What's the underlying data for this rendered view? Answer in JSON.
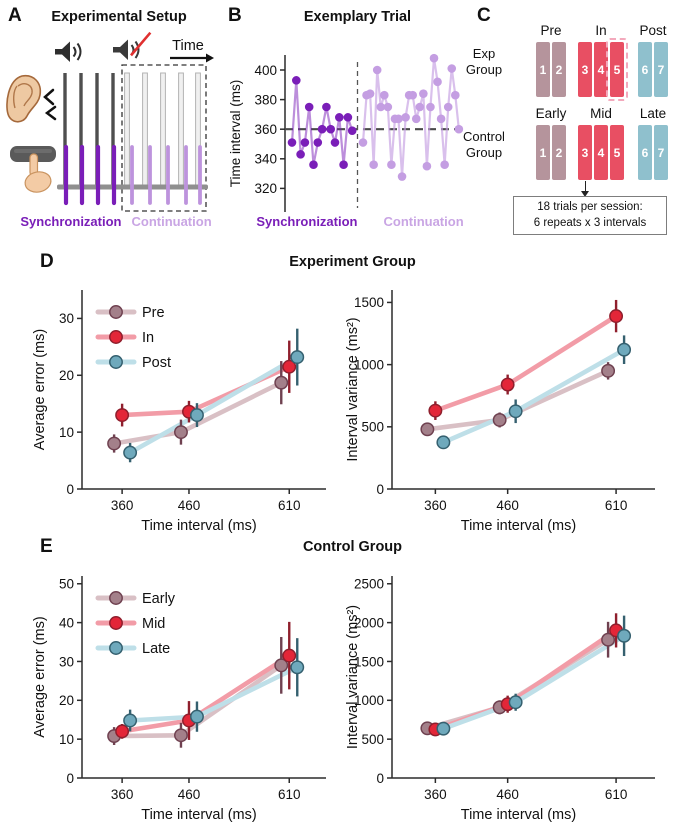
{
  "figure": {
    "panels": {
      "A": {
        "label": "A",
        "title": "Experimental Setup",
        "time_label": "Time",
        "sync_label": "Synchronization",
        "cont_label": "Continuation"
      },
      "B": {
        "label": "B",
        "title": "Exemplary Trial",
        "sync_label": "Synchronization",
        "cont_label": "Continuation"
      },
      "C": {
        "label": "C"
      },
      "D": {
        "label": "D",
        "title": "Experiment Group"
      },
      "E": {
        "label": "E",
        "title": "Control Group"
      }
    }
  },
  "colors": {
    "sync": "#7a1eb8",
    "cont": "#c49ee2",
    "axis": "#2b2b2b",
    "refline": "#4a4a4a",
    "series": {
      "pre": {
        "line": "#d9c0c5",
        "marker": "#a3808a",
        "dark": "#6f4150"
      },
      "in": {
        "line": "#f29ca7",
        "marker": "#e32638",
        "dark": "#8f1f2d"
      },
      "post": {
        "line": "#bedfe8",
        "marker": "#6fa9bc",
        "dark": "#35606f"
      }
    },
    "bars": {
      "mauve": "#b5949c",
      "red": "#e84f63",
      "blue": "#8fc0cd",
      "dashed_outline": "#f3a9bc"
    },
    "panelA": {
      "gray_line": "#4f4f4f",
      "faded_fill": "#f0f0f0",
      "faded_stroke": "#b3b3b3",
      "baseline": "#8f8f8f",
      "pad": "#5a5a5a",
      "skin": "#f3cba5",
      "skin_stroke": "#c9935f",
      "mute_slash": "#e03030",
      "dark_purple": "#7a1eb8",
      "light_purple": "#bd93dd"
    }
  },
  "panelC": {
    "rows": [
      {
        "group_label": "Exp\nGroup",
        "phases": [
          {
            "name": "Pre",
            "color": "mauve",
            "bars": [
              "1",
              "2"
            ]
          },
          {
            "name": "In",
            "color": "red",
            "bars": [
              "3",
              "4",
              "5"
            ],
            "dashed_last": true
          },
          {
            "name": "Post",
            "color": "blue",
            "bars": [
              "6",
              "7"
            ]
          }
        ]
      },
      {
        "group_label": "Control\nGroup",
        "phases": [
          {
            "name": "Early",
            "color": "mauve",
            "bars": [
              "1",
              "2"
            ]
          },
          {
            "name": "Mid",
            "color": "red",
            "bars": [
              "3",
              "4",
              "5"
            ]
          },
          {
            "name": "Late",
            "color": "blue",
            "bars": [
              "6",
              "7"
            ]
          }
        ]
      }
    ],
    "note_lines": [
      "18 trials per session:",
      "6 repeats x 3 intervals"
    ]
  },
  "chart_data": [
    {
      "id": "B",
      "type": "line",
      "panel": "B",
      "title": "Exemplary Trial",
      "ylabel": "Time interval (ms)",
      "yticks": [
        320,
        340,
        360,
        380,
        400
      ],
      "ylim": [
        305,
        408
      ],
      "reference_line_y": 360,
      "phases": [
        {
          "name": "Synchronization",
          "color_key": "sync",
          "values": [
            351,
            393,
            343,
            351,
            375,
            336,
            351,
            360,
            375,
            360,
            351,
            368,
            336,
            368,
            359
          ]
        },
        {
          "name": "Continuation",
          "color_key": "cont",
          "values": [
            351,
            383,
            384,
            336,
            400,
            375,
            383,
            375,
            336,
            367,
            367,
            328,
            368,
            383,
            383,
            367,
            375,
            384,
            335,
            375,
            408,
            392,
            367,
            336,
            375,
            401,
            383,
            360
          ]
        }
      ]
    },
    {
      "id": "D-left",
      "type": "line-errorbar",
      "panel": "D",
      "group_title": "Experiment Group",
      "xlabel": "Time interval (ms)",
      "ylabel": "Average error (ms)",
      "categories": [
        360,
        460,
        610
      ],
      "xlim": [
        300,
        650
      ],
      "yticks": [
        0,
        10,
        20,
        30
      ],
      "ylim": [
        0,
        35
      ],
      "legend": true,
      "palette": [
        "pre",
        "in",
        "post"
      ],
      "series": [
        {
          "name": "Pre",
          "values": [
            8,
            10,
            18.7
          ],
          "errors": [
            1.6,
            2.2,
            3.8
          ]
        },
        {
          "name": "In",
          "values": [
            13,
            13.6,
            21.5
          ],
          "errors": [
            2.0,
            1.9,
            4.6
          ]
        },
        {
          "name": "Post",
          "values": [
            6.4,
            13,
            23.2
          ],
          "errors": [
            1.7,
            2.1,
            5.0
          ]
        }
      ]
    },
    {
      "id": "D-right",
      "type": "line-errorbar",
      "panel": "D",
      "group_title": "Experiment Group",
      "xlabel": "Time interval (ms)",
      "ylabel": "Interval variance (ms²)",
      "categories": [
        360,
        460,
        610
      ],
      "xlim": [
        300,
        650
      ],
      "yticks": [
        0,
        500,
        1000,
        1500
      ],
      "ylim": [
        0,
        1600
      ],
      "legend": false,
      "palette": [
        "pre",
        "in",
        "post"
      ],
      "series": [
        {
          "name": "Pre",
          "values": [
            480,
            555,
            950
          ],
          "errors": [
            45,
            60,
            70
          ]
        },
        {
          "name": "In",
          "values": [
            630,
            840,
            1390
          ],
          "errors": [
            75,
            80,
            130
          ]
        },
        {
          "name": "Post",
          "values": [
            375,
            625,
            1120
          ],
          "errors": [
            35,
            95,
            115
          ]
        }
      ]
    },
    {
      "id": "E-left",
      "type": "line-errorbar",
      "panel": "E",
      "group_title": "Control Group",
      "xlabel": "Time interval (ms)",
      "ylabel": "Average error (ms)",
      "categories": [
        360,
        460,
        610
      ],
      "xlim": [
        300,
        650
      ],
      "yticks": [
        0,
        10,
        20,
        30,
        40,
        50
      ],
      "ylim": [
        0,
        52
      ],
      "legend": true,
      "palette": [
        "pre",
        "in",
        "post"
      ],
      "series": [
        {
          "name": "Early",
          "values": [
            10.8,
            11,
            29
          ],
          "errors": [
            2.3,
            3.2,
            7.3
          ]
        },
        {
          "name": "Mid",
          "values": [
            12,
            14.8,
            31.5
          ],
          "errors": [
            1.9,
            5.0,
            8.7
          ]
        },
        {
          "name": "Late",
          "values": [
            14.8,
            15.8,
            28.5
          ],
          "errors": [
            2.8,
            3.9,
            7.5
          ]
        }
      ]
    },
    {
      "id": "E-right",
      "type": "line-errorbar",
      "panel": "E",
      "group_title": "Control Group",
      "xlabel": "Time interval (ms)",
      "ylabel": "Interval variance (ms²)",
      "categories": [
        360,
        460,
        610
      ],
      "xlim": [
        300,
        650
      ],
      "yticks": [
        0,
        500,
        1000,
        1500,
        2000,
        2500
      ],
      "ylim": [
        0,
        2600
      ],
      "legend": false,
      "palette": [
        "pre",
        "in",
        "post"
      ],
      "series": [
        {
          "name": "Early",
          "values": [
            640,
            910,
            1780
          ],
          "errors": [
            75,
            90,
            230
          ]
        },
        {
          "name": "Mid",
          "values": [
            625,
            950,
            1900
          ],
          "errors": [
            85,
            110,
            220
          ]
        },
        {
          "name": "Late",
          "values": [
            635,
            975,
            1830
          ],
          "errors": [
            75,
            110,
            260
          ]
        }
      ]
    }
  ]
}
